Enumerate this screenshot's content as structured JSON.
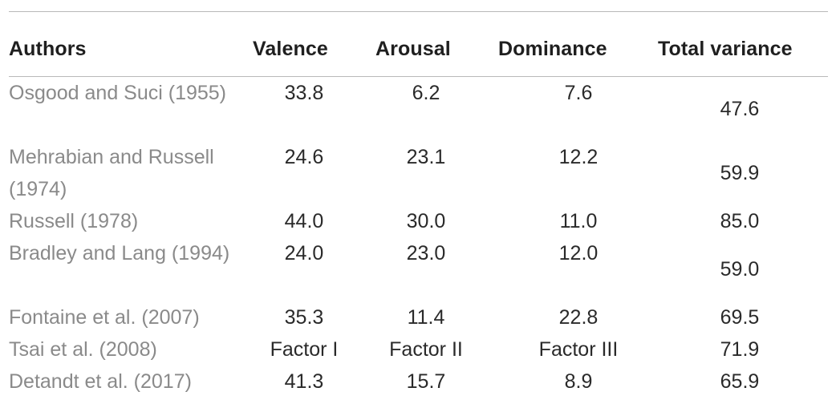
{
  "headers": {
    "authors": "Authors",
    "valence": "Valence",
    "arousal": "Arousal",
    "dominance": "Dominance",
    "total": "Total variance"
  },
  "rows": [
    {
      "author": "Osgood and Suci (1955)",
      "valence": "33.8",
      "arousal": "6.2",
      "dominance": "7.6",
      "total": "47.6"
    },
    {
      "author": "Mehrabian and Russell (1974)",
      "valence": "24.6",
      "arousal": "23.1",
      "dominance": "12.2",
      "total": "59.9"
    },
    {
      "author": "Russell (1978)",
      "valence": "44.0",
      "arousal": "30.0",
      "dominance": "11.0",
      "total": "85.0"
    },
    {
      "author": "Bradley and Lang (1994)",
      "valence": "24.0",
      "arousal": "23.0",
      "dominance": "12.0",
      "total": "59.0"
    },
    {
      "author": "Fontaine et al. (2007)",
      "valence": "35.3",
      "arousal": "11.4",
      "dominance": "22.8",
      "total": "69.5"
    },
    {
      "author": "Tsai et al. (2008)",
      "valence": "Factor I",
      "arousal": "Factor II",
      "dominance": "Factor III",
      "total": "71.9"
    },
    {
      "author": "Detandt et al. (2017)",
      "valence": "41.3",
      "arousal": "15.7",
      "dominance": "8.9",
      "total": "65.9"
    }
  ]
}
